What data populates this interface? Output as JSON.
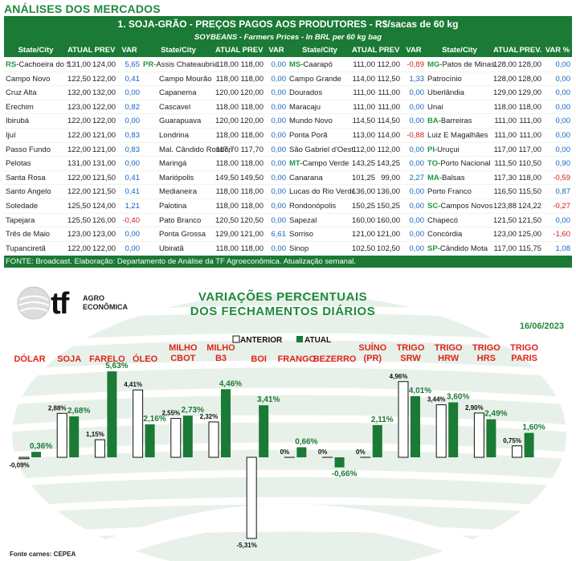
{
  "page_title": "ANÁLISES DOS MERCADOS",
  "table": {
    "title": "1. SOJA-GRÃO - PREÇOS PAGOS AOS PRODUTORES - R$/sacas de 60 kg",
    "subtitle": "SOYBEANS - Farmers Prices - In BRL per 60 kg bag",
    "footer": "FONTE: Broadcast. Elaboração: Departamento de Análise da TF Agroeconômica. Atualização semanal.",
    "blocks": [
      {
        "headers": [
          "State/City",
          "ATUAL",
          "PREV",
          "VAR %"
        ],
        "rows": [
          {
            "prefix": "RS-",
            "city": "Cachoeira do Sul",
            "atual": "131,00",
            "prev": "124,00",
            "var": "5,65"
          },
          {
            "prefix": "",
            "city": "Campo Novo",
            "atual": "122,50",
            "prev": "122,00",
            "var": "0,41"
          },
          {
            "prefix": "",
            "city": "Cruz Alta",
            "atual": "132,00",
            "prev": "132,00",
            "var": "0,00"
          },
          {
            "prefix": "",
            "city": "Erechim",
            "atual": "123,00",
            "prev": "122,00",
            "var": "0,82"
          },
          {
            "prefix": "",
            "city": "Ibirubá",
            "atual": "122,00",
            "prev": "122,00",
            "var": "0,00"
          },
          {
            "prefix": "",
            "city": "Ijuí",
            "atual": "122,00",
            "prev": "121,00",
            "var": "0,83"
          },
          {
            "prefix": "",
            "city": "Passo Fundo",
            "atual": "122,00",
            "prev": "121,00",
            "var": "0,83"
          },
          {
            "prefix": "",
            "city": "Pelotas",
            "atual": "131,00",
            "prev": "131,00",
            "var": "0,00"
          },
          {
            "prefix": "",
            "city": "Santa Rosa",
            "atual": "122,00",
            "prev": "121,50",
            "var": "0,41"
          },
          {
            "prefix": "",
            "city": "Santo Angelo",
            "atual": "122,00",
            "prev": "121,50",
            "var": "0,41"
          },
          {
            "prefix": "",
            "city": "Soledade",
            "atual": "125,50",
            "prev": "124,00",
            "var": "1,21"
          },
          {
            "prefix": "",
            "city": "Tapejara",
            "atual": "125,50",
            "prev": "126,00",
            "var": "-0,40"
          },
          {
            "prefix": "",
            "city": "Três de Maio",
            "atual": "123,00",
            "prev": "123,00",
            "var": "0,00"
          },
          {
            "prefix": "",
            "city": "Tupanciretã",
            "atual": "122,00",
            "prev": "122,00",
            "var": "0,00"
          }
        ]
      },
      {
        "headers": [
          "State/City",
          "ATUAL",
          "PREV",
          "VAR %"
        ],
        "rows": [
          {
            "prefix": "PR-",
            "city": "Assis Chateaubriand",
            "atual": "118,00",
            "prev": "118,00",
            "var": "0,00"
          },
          {
            "prefix": "",
            "city": "Campo Mourão",
            "atual": "118,00",
            "prev": "118,00",
            "var": "0,00"
          },
          {
            "prefix": "",
            "city": "Capanema",
            "atual": "120,00",
            "prev": "120,00",
            "var": "0,00"
          },
          {
            "prefix": "",
            "city": "Cascavel",
            "atual": "118,00",
            "prev": "118,00",
            "var": "0,00"
          },
          {
            "prefix": "",
            "city": "Guarapuava",
            "atual": "120,00",
            "prev": "120,00",
            "var": "0,00"
          },
          {
            "prefix": "",
            "city": "Londrina",
            "atual": "118,00",
            "prev": "118,00",
            "var": "0,00"
          },
          {
            "prefix": "",
            "city": "Mal. Cândido Rondon",
            "atual": "117,70",
            "prev": "117,70",
            "var": "0,00"
          },
          {
            "prefix": "",
            "city": "Maringá",
            "atual": "118,00",
            "prev": "118,00",
            "var": "0,00"
          },
          {
            "prefix": "",
            "city": "Mariópolis",
            "atual": "149,50",
            "prev": "149,50",
            "var": "0,00"
          },
          {
            "prefix": "",
            "city": "Medianeira",
            "atual": "118,00",
            "prev": "118,00",
            "var": "0,00"
          },
          {
            "prefix": "",
            "city": "Palotina",
            "atual": "118,00",
            "prev": "118,00",
            "var": "0,00"
          },
          {
            "prefix": "",
            "city": "Pato Branco",
            "atual": "120,50",
            "prev": "120,50",
            "var": "0,00"
          },
          {
            "prefix": "",
            "city": "Ponta Grossa",
            "atual": "129,00",
            "prev": "121,00",
            "var": "6,61"
          },
          {
            "prefix": "",
            "city": "Ubiratã",
            "atual": "118,00",
            "prev": "118,00",
            "var": "0,00"
          }
        ]
      },
      {
        "headers": [
          "State/City",
          "ATUAL",
          "PREV",
          "VAR %"
        ],
        "rows": [
          {
            "prefix": "MS-",
            "city": "Caarapó",
            "atual": "111,00",
            "prev": "112,00",
            "var": "-0,89"
          },
          {
            "prefix": "",
            "city": "Campo Grande",
            "atual": "114,00",
            "prev": "112,50",
            "var": "1,33"
          },
          {
            "prefix": "",
            "city": "Dourados",
            "atual": "111,00",
            "prev": "111,00",
            "var": "0,00"
          },
          {
            "prefix": "",
            "city": "Maracaju",
            "atual": "111,00",
            "prev": "111,00",
            "var": "0,00"
          },
          {
            "prefix": "",
            "city": "Mundo Novo",
            "atual": "114,50",
            "prev": "114,50",
            "var": "0,00"
          },
          {
            "prefix": "",
            "city": "Ponta Porã",
            "atual": "113,00",
            "prev": "114,00",
            "var": "-0,88"
          },
          {
            "prefix": "",
            "city": "São Gabriel d'Oest",
            "atual": "112,00",
            "prev": "112,00",
            "var": "0,00"
          },
          {
            "prefix": "MT-",
            "city": "Campo Verde",
            "atual": "143,25",
            "prev": "143,25",
            "var": "0,00"
          },
          {
            "prefix": "",
            "city": "Canarana",
            "atual": "101,25",
            "prev": "99,00",
            "var": "2,27"
          },
          {
            "prefix": "",
            "city": "Lucas do Rio Verde",
            "atual": "136,00",
            "prev": "136,00",
            "var": "0,00"
          },
          {
            "prefix": "",
            "city": "Rondonópolis",
            "atual": "150,25",
            "prev": "150,25",
            "var": "0,00"
          },
          {
            "prefix": "",
            "city": "Sapezal",
            "atual": "160,00",
            "prev": "160,00",
            "var": "0,00"
          },
          {
            "prefix": "",
            "city": "Sorriso",
            "atual": "121,00",
            "prev": "121,00",
            "var": "0,00"
          },
          {
            "prefix": "",
            "city": "Sinop",
            "atual": "102,50",
            "prev": "102,50",
            "var": "0,00"
          }
        ]
      },
      {
        "headers": [
          "State/City",
          "ATUAL",
          "PREV.",
          "VAR %"
        ],
        "rows": [
          {
            "prefix": "MG-",
            "city": "Patos de Minas",
            "atual": "128,00",
            "prev": "128,00",
            "var": "0,00"
          },
          {
            "prefix": "",
            "city": "Patrocínio",
            "atual": "128,00",
            "prev": "128,00",
            "var": "0,00"
          },
          {
            "prefix": "",
            "city": "Uberlândia",
            "atual": "129,00",
            "prev": "129,00",
            "var": "0,00"
          },
          {
            "prefix": "",
            "city": "Unaí",
            "atual": "118,00",
            "prev": "118,00",
            "var": "0,00"
          },
          {
            "prefix": "BA-",
            "city": "Barreiras",
            "atual": "111,00",
            "prev": "111,00",
            "var": "0,00"
          },
          {
            "prefix": "",
            "city": "Luiz E Magalhães",
            "atual": "111,00",
            "prev": "111,00",
            "var": "0,00"
          },
          {
            "prefix": "PI-",
            "city": "Uruçui",
            "atual": "117,00",
            "prev": "117,00",
            "var": "0,00"
          },
          {
            "prefix": "TO-",
            "city": "Porto Nacional",
            "atual": "111,50",
            "prev": "110,50",
            "var": "0,90"
          },
          {
            "prefix": "MA-",
            "city": "Balsas",
            "atual": "117,30",
            "prev": "118,00",
            "var": "-0,59"
          },
          {
            "prefix": "",
            "city": "Porto Franco",
            "atual": "116,50",
            "prev": "115,50",
            "var": "0,87"
          },
          {
            "prefix": "SC-",
            "city": "Campos Novos",
            "atual": "123,88",
            "prev": "124,22",
            "var": "-0,27"
          },
          {
            "prefix": "",
            "city": "Chapecó",
            "atual": "121,50",
            "prev": "121,50",
            "var": "0,00"
          },
          {
            "prefix": "",
            "city": "Concórdia",
            "atual": "123,00",
            "prev": "125,00",
            "var": "-1,60"
          },
          {
            "prefix": "SP-",
            "city": "Cândido Mota",
            "atual": "117,00",
            "prev": "115,75",
            "var": "1,08"
          }
        ]
      }
    ]
  },
  "logo": {
    "mark": "tf",
    "line1": "AGRO",
    "line2": "ECONÔMICA"
  },
  "chart_data": {
    "type": "bar",
    "title_line1": "VARIAÇÕES PERCENTUAIS",
    "title_line2": "DOS FECHAMENTOS DIÁRIOS",
    "date": "16/06/2023",
    "legend": [
      "ANTERIOR",
      "ATUAL"
    ],
    "colors": {
      "anterior": "#ffffff",
      "atual": "#1b7a35",
      "title": "#1f8a3c",
      "category": "#e0241b"
    },
    "categories": [
      [
        "DÓLAR"
      ],
      [
        "SOJA"
      ],
      [
        "FARELO"
      ],
      [
        "ÓLEO"
      ],
      [
        "MILHO",
        "CBOT"
      ],
      [
        "MILHO",
        "B3"
      ],
      [
        "BOI"
      ],
      [
        "FRANGO"
      ],
      [
        "BEZERRO"
      ],
      [
        "SUÍNO",
        "(PR)"
      ],
      [
        "TRIGO",
        "SRW"
      ],
      [
        "TRIGO",
        "HRW"
      ],
      [
        "TRIGO",
        "HRS"
      ],
      [
        "TRIGO",
        "PARIS"
      ]
    ],
    "series": [
      {
        "name": "ANTERIOR",
        "values": [
          -0.09,
          2.88,
          1.15,
          4.41,
          2.55,
          2.32,
          -5.31,
          0,
          0,
          0,
          4.96,
          3.44,
          2.9,
          0.75
        ],
        "labels": [
          "-0,09%",
          "2,88%",
          "1,15%",
          "4,41%",
          "2,55%",
          "2,32%",
          "-5,31%",
          "0%",
          "0%",
          "0%",
          "4,96%",
          "3,44%",
          "2,90%",
          "0,75%"
        ]
      },
      {
        "name": "ATUAL",
        "values": [
          0.36,
          2.68,
          5.63,
          2.16,
          2.73,
          4.46,
          3.41,
          0.66,
          -0.66,
          2.11,
          4.01,
          3.6,
          2.49,
          1.6
        ],
        "labels": [
          "0,36%",
          "2,68%",
          "5,63%",
          "2,16%",
          "2,73%",
          "4,46%",
          "3,41%",
          "0,66%",
          "-0,66%",
          "2,11%",
          "4,01%",
          "3,60%",
          "2,49%",
          "1,60%"
        ]
      }
    ],
    "source": "Fonte carnes: CEPEA"
  }
}
